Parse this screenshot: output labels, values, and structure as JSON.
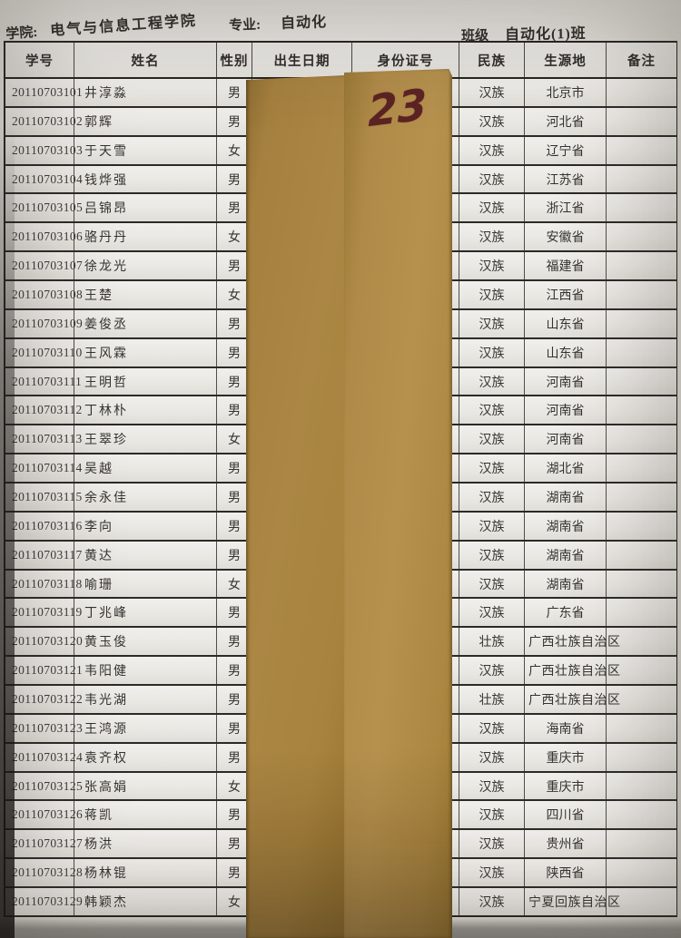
{
  "page_header": {
    "school_label": "学院:",
    "school_value": "电气与信息工程学院",
    "major_label": "专业:",
    "major_value": "自动化",
    "class_label": "班级",
    "class_value": "自动化(1)班"
  },
  "table": {
    "columns": [
      "学号",
      "姓名",
      "性别",
      "出生日期",
      "身份证号",
      "民族",
      "生源地",
      "备注"
    ],
    "rows": [
      {
        "id": "20110703101",
        "name": "井淳淼",
        "gender": "男",
        "ethnicity": "汉族",
        "origin": "北京市",
        "remark": ""
      },
      {
        "id": "20110703102",
        "name": "郭辉",
        "gender": "男",
        "ethnicity": "汉族",
        "origin": "河北省",
        "remark": ""
      },
      {
        "id": "20110703103",
        "name": "于天雪",
        "gender": "女",
        "ethnicity": "汉族",
        "origin": "辽宁省",
        "remark": ""
      },
      {
        "id": "20110703104",
        "name": "钱烨强",
        "gender": "男",
        "ethnicity": "汉族",
        "origin": "江苏省",
        "remark": ""
      },
      {
        "id": "20110703105",
        "name": "吕锦昂",
        "gender": "男",
        "ethnicity": "汉族",
        "origin": "浙江省",
        "remark": ""
      },
      {
        "id": "20110703106",
        "name": "骆丹丹",
        "gender": "女",
        "ethnicity": "汉族",
        "origin": "安徽省",
        "remark": ""
      },
      {
        "id": "20110703107",
        "name": "徐龙光",
        "gender": "男",
        "ethnicity": "汉族",
        "origin": "福建省",
        "remark": ""
      },
      {
        "id": "20110703108",
        "name": "王楚",
        "gender": "女",
        "ethnicity": "汉族",
        "origin": "江西省",
        "remark": ""
      },
      {
        "id": "20110703109",
        "name": "姜俊丞",
        "gender": "男",
        "ethnicity": "汉族",
        "origin": "山东省",
        "remark": ""
      },
      {
        "id": "20110703110",
        "name": "王风霖",
        "gender": "男",
        "ethnicity": "汉族",
        "origin": "山东省",
        "remark": ""
      },
      {
        "id": "20110703111",
        "name": "王明哲",
        "gender": "男",
        "ethnicity": "汉族",
        "origin": "河南省",
        "remark": ""
      },
      {
        "id": "20110703112",
        "name": "丁林朴",
        "gender": "男",
        "ethnicity": "汉族",
        "origin": "河南省",
        "remark": ""
      },
      {
        "id": "20110703113",
        "name": "王翠珍",
        "gender": "女",
        "ethnicity": "汉族",
        "origin": "河南省",
        "remark": ""
      },
      {
        "id": "20110703114",
        "name": "吴越",
        "gender": "男",
        "ethnicity": "汉族",
        "origin": "湖北省",
        "remark": ""
      },
      {
        "id": "20110703115",
        "name": "余永佳",
        "gender": "男",
        "ethnicity": "汉族",
        "origin": "湖南省",
        "remark": ""
      },
      {
        "id": "20110703116",
        "name": "李向",
        "gender": "男",
        "ethnicity": "汉族",
        "origin": "湖南省",
        "remark": ""
      },
      {
        "id": "20110703117",
        "name": "黄达",
        "gender": "男",
        "ethnicity": "汉族",
        "origin": "湖南省",
        "remark": ""
      },
      {
        "id": "20110703118",
        "name": "喻珊",
        "gender": "女",
        "ethnicity": "汉族",
        "origin": "湖南省",
        "remark": ""
      },
      {
        "id": "20110703119",
        "name": "丁兆峰",
        "gender": "男",
        "ethnicity": "汉族",
        "origin": "广东省",
        "remark": ""
      },
      {
        "id": "20110703120",
        "name": "黄玉俊",
        "gender": "男",
        "ethnicity": "壮族",
        "origin": "广西壮族自治区",
        "remark": ""
      },
      {
        "id": "20110703121",
        "name": "韦阳健",
        "gender": "男",
        "ethnicity": "汉族",
        "origin": "广西壮族自治区",
        "remark": ""
      },
      {
        "id": "20110703122",
        "name": "韦光湖",
        "gender": "男",
        "ethnicity": "壮族",
        "origin": "广西壮族自治区",
        "remark": ""
      },
      {
        "id": "20110703123",
        "name": "王鸿源",
        "gender": "男",
        "ethnicity": "汉族",
        "origin": "海南省",
        "remark": ""
      },
      {
        "id": "20110703124",
        "name": "袁齐权",
        "gender": "男",
        "ethnicity": "汉族",
        "origin": "重庆市",
        "remark": ""
      },
      {
        "id": "20110703125",
        "name": "张高娟",
        "gender": "女",
        "ethnicity": "汉族",
        "origin": "重庆市",
        "remark": ""
      },
      {
        "id": "20110703126",
        "name": "蒋凯",
        "gender": "男",
        "ethnicity": "汉族",
        "origin": "四川省",
        "remark": ""
      },
      {
        "id": "20110703127",
        "name": "杨洪",
        "gender": "男",
        "ethnicity": "汉族",
        "origin": "贵州省",
        "remark": ""
      },
      {
        "id": "20110703128",
        "name": "杨林锟",
        "gender": "男",
        "ethnicity": "汉族",
        "origin": "陕西省",
        "remark": ""
      },
      {
        "id": "20110703129",
        "name": "韩颖杰",
        "gender": "女",
        "ethnicity": "汉族",
        "origin": "宁夏回族自治区",
        "remark": ""
      }
    ]
  },
  "cover_strip": {
    "handwritten_number": "23",
    "ink_color": "#5c2323",
    "paper_color": "#ab8644"
  },
  "colors": {
    "paper": "#e9e7e2",
    "table_line": "#2c2a27",
    "text": "#363432"
  }
}
